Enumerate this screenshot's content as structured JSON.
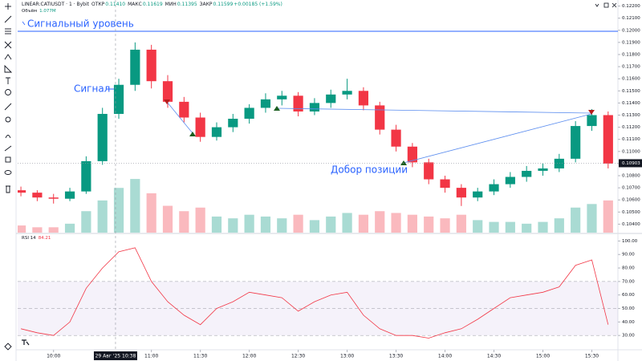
{
  "header": {
    "symbol": "LINEAR:CATIUSDT · 1 · Bybit",
    "fields": [
      {
        "label": "ОТКР",
        "value": "0.11410"
      },
      {
        "label": "МАКС",
        "value": "0.11619"
      },
      {
        "label": "МИН",
        "value": "0.11395"
      },
      {
        "label": "ЗАКР",
        "value": "0.11599"
      }
    ],
    "change": "+0.00185 (+1.59%)",
    "volume_label": "Объём",
    "volume_value": "1.077M"
  },
  "annotations": {
    "level": "Сигнальный уровень",
    "signal": "Сигнал",
    "add_position": "Добор позиции"
  },
  "chart_data": {
    "type": "candlestick",
    "x": [
      580,
      590,
      600,
      610,
      620,
      630,
      640,
      650,
      660,
      670,
      680,
      690,
      700,
      710,
      720,
      730,
      740,
      750,
      760,
      770,
      780,
      790,
      800,
      810,
      820,
      830,
      840,
      850,
      860,
      870,
      880,
      890,
      900,
      910,
      920,
      930,
      940
    ],
    "open": [
      0.1068,
      0.1066,
      0.1062,
      0.1061,
      0.1067,
      0.1092,
      0.1131,
      0.1155,
      0.1184,
      0.1158,
      0.1141,
      0.1128,
      0.1112,
      0.112,
      0.1127,
      0.1136,
      0.1143,
      0.1146,
      0.1133,
      0.114,
      0.1147,
      0.115,
      0.1138,
      0.1118,
      0.1104,
      0.1091,
      0.1077,
      0.107,
      0.1062,
      0.1067,
      0.1073,
      0.1079,
      0.1084,
      0.1086,
      0.1094,
      0.1121,
      0.113
    ],
    "high": [
      0.1071,
      0.1068,
      0.1065,
      0.107,
      0.1096,
      0.1136,
      0.116,
      0.119,
      0.1188,
      0.1163,
      0.1145,
      0.1132,
      0.1124,
      0.1131,
      0.1139,
      0.1148,
      0.115,
      0.1149,
      0.1144,
      0.1151,
      0.116,
      0.1153,
      0.1141,
      0.1122,
      0.1107,
      0.1094,
      0.108,
      0.1073,
      0.107,
      0.1077,
      0.1083,
      0.1088,
      0.109,
      0.1098,
      0.1125,
      0.1135,
      0.1133
    ],
    "low": [
      0.1063,
      0.1059,
      0.1057,
      0.1059,
      0.1065,
      0.1089,
      0.1127,
      0.115,
      0.1152,
      0.1136,
      0.1124,
      0.1108,
      0.1109,
      0.1116,
      0.1123,
      0.1132,
      0.1138,
      0.1129,
      0.113,
      0.1136,
      0.1143,
      0.1134,
      0.1114,
      0.11,
      0.1087,
      0.1073,
      0.1066,
      0.1055,
      0.1059,
      0.1064,
      0.107,
      0.1075,
      0.108,
      0.1083,
      0.1091,
      0.1117,
      0.1086
    ],
    "close": [
      0.1066,
      0.1062,
      0.1061,
      0.1067,
      0.1092,
      0.1131,
      0.1155,
      0.1184,
      0.1158,
      0.1141,
      0.1128,
      0.1112,
      0.112,
      0.1127,
      0.1136,
      0.1143,
      0.1146,
      0.1133,
      0.114,
      0.1147,
      0.115,
      0.1138,
      0.1118,
      0.1104,
      0.1091,
      0.1077,
      0.107,
      0.1062,
      0.1067,
      0.1073,
      0.1079,
      0.1084,
      0.1086,
      0.1094,
      0.1121,
      0.113,
      0.109
    ],
    "up_color": "#089981",
    "down_color": "#f23645",
    "xlim": [
      578,
      946
    ],
    "xticks": [
      {
        "value": 600,
        "label": "10:00"
      },
      {
        "value": 660,
        "label": "11:00"
      },
      {
        "value": 690,
        "label": "11:30"
      },
      {
        "value": 720,
        "label": "12:00"
      },
      {
        "value": 750,
        "label": "12:30"
      },
      {
        "value": 780,
        "label": "13:00"
      },
      {
        "value": 810,
        "label": "13:30"
      },
      {
        "value": 840,
        "label": "14:00"
      },
      {
        "value": 870,
        "label": "14:30"
      },
      {
        "value": 900,
        "label": "15:00"
      },
      {
        "value": 930,
        "label": "15:30"
      }
    ],
    "ylim": [
      0.1033,
      0.1225
    ],
    "yticks": [
      {
        "value": 0.122,
        "label": "0.12200"
      },
      {
        "value": 0.121,
        "label": "0.12100"
      },
      {
        "value": 0.12,
        "label": "0.12000"
      },
      {
        "value": 0.119,
        "label": "0.11900"
      },
      {
        "value": 0.118,
        "label": "0.11800"
      },
      {
        "value": 0.117,
        "label": "0.11700"
      },
      {
        "value": 0.116,
        "label": "0.11600"
      },
      {
        "value": 0.115,
        "label": "0.11500"
      },
      {
        "value": 0.114,
        "label": "0.11400"
      },
      {
        "value": 0.113,
        "label": "0.11300"
      },
      {
        "value": 0.112,
        "label": "0.11200"
      },
      {
        "value": 0.111,
        "label": "0.11100"
      },
      {
        "value": 0.11,
        "label": "0.11000"
      },
      {
        "value": 0.109,
        "label": "0.10900"
      },
      {
        "value": 0.108,
        "label": "0.10800"
      },
      {
        "value": 0.107,
        "label": "0.10700"
      },
      {
        "value": 0.106,
        "label": "0.10600"
      },
      {
        "value": 0.105,
        "label": "0.10500"
      },
      {
        "value": 0.104,
        "label": "0.10400"
      }
    ],
    "last_price": {
      "value": 0.10903,
      "label": "0.10903"
    },
    "crosshair": {
      "value": 638,
      "label": "29 Авг '25  10:38"
    },
    "volume": {
      "values": [
        4,
        3,
        3,
        5,
        12,
        18,
        25,
        30,
        22,
        15,
        12,
        14,
        9,
        8,
        10,
        9,
        8,
        10,
        7,
        9,
        11,
        10,
        12,
        11,
        10,
        9,
        8,
        10,
        7,
        6,
        6,
        5,
        6,
        8,
        14,
        16,
        18
      ],
      "ylim": [
        0,
        130
      ]
    },
    "rsi": {
      "title": "RSI 14",
      "value_label": "84.21",
      "color": "#f23645",
      "values": [
        35,
        32,
        30,
        40,
        65,
        80,
        92,
        95,
        70,
        55,
        45,
        38,
        50,
        55,
        62,
        60,
        58,
        48,
        55,
        60,
        62,
        45,
        35,
        30,
        30,
        28,
        32,
        35,
        42,
        50,
        58,
        60,
        62,
        66,
        82,
        86,
        38
      ],
      "ylim": [
        20,
        105
      ],
      "yticks": [
        {
          "value": 100,
          "label": "100.00"
        },
        {
          "value": 90,
          "label": "90.00"
        },
        {
          "value": 80,
          "label": "80.00"
        },
        {
          "value": 70,
          "label": "70.00"
        },
        {
          "value": 60,
          "label": "60.00"
        },
        {
          "value": 50,
          "label": "50.00"
        },
        {
          "value": 40,
          "label": "40.00"
        },
        {
          "value": 30,
          "label": "30.00"
        }
      ],
      "band": [
        30,
        70
      ],
      "midline": 50
    }
  }
}
